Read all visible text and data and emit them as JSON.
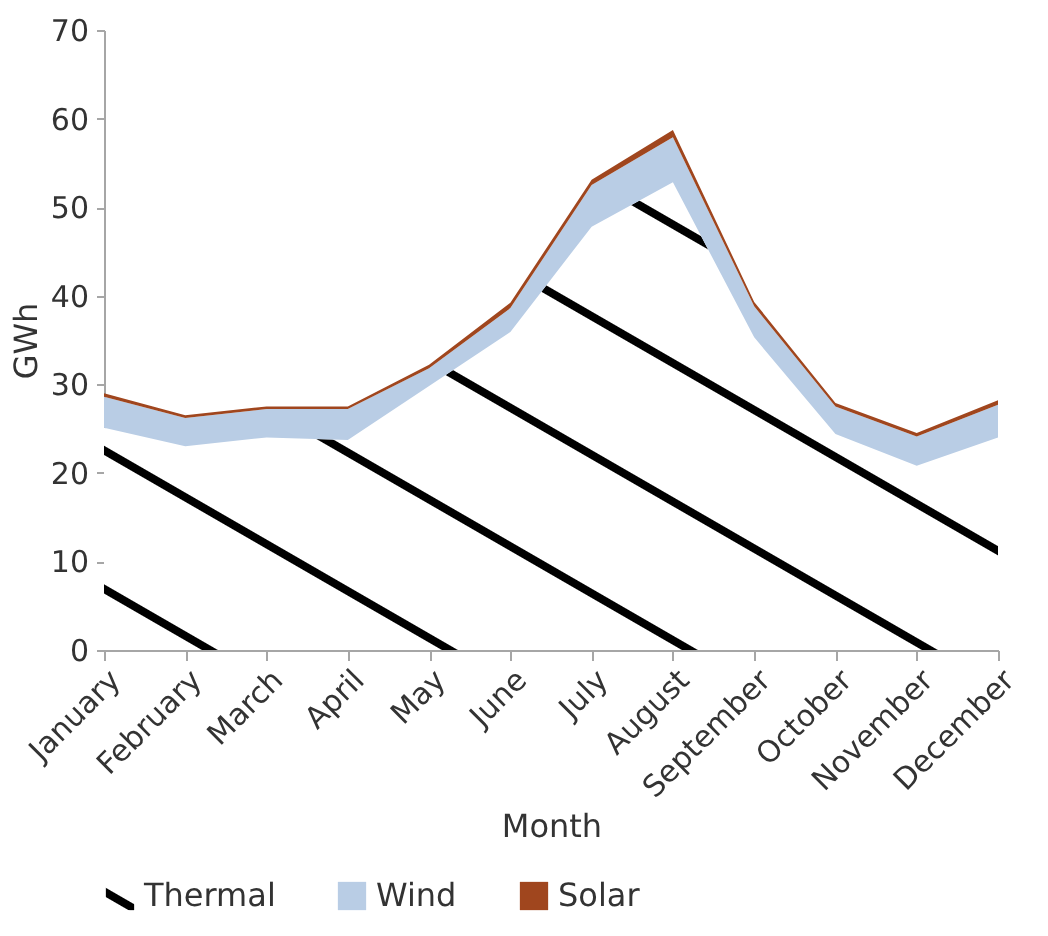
{
  "chart_data": {
    "type": "area",
    "stacked": true,
    "xlabel": "Month",
    "ylabel": "GWh",
    "categories": [
      "January",
      "February",
      "March",
      "April",
      "May",
      "June",
      "July",
      "August",
      "September",
      "October",
      "November",
      "December"
    ],
    "series": [
      {
        "name": "Thermal",
        "color": "#000000",
        "values": [
          25.1,
          23.0,
          24.0,
          23.7,
          29.8,
          35.9,
          47.8,
          52.8,
          35.3,
          24.4,
          20.8,
          24.0
        ]
      },
      {
        "name": "Wind",
        "color": "#b9cde5",
        "values": [
          3.5,
          3.2,
          3.2,
          3.5,
          2.0,
          2.7,
          4.7,
          5.1,
          3.5,
          3.1,
          3.3,
          3.7
        ]
      },
      {
        "name": "Solar",
        "color": "#a0461e",
        "values": [
          0.4,
          0.3,
          0.3,
          0.3,
          0.4,
          0.6,
          0.6,
          0.8,
          0.5,
          0.4,
          0.4,
          0.5
        ]
      }
    ],
    "ylim": [
      0,
      70
    ],
    "yticks": [
      0,
      10,
      20,
      30,
      40,
      50,
      60,
      70
    ],
    "grid": false,
    "legend": "bottom"
  }
}
